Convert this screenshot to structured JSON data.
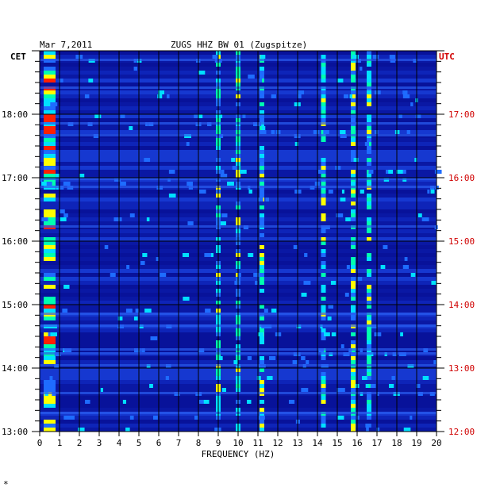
{
  "header": {
    "date": "Mar 7,2011",
    "station": "ZUGS HHZ BW 01 (Zugspitze)"
  },
  "chart_data": {
    "type": "heatmap",
    "xlabel": "FREQUENCY (HZ)",
    "x_ticks": [
      "0",
      "1",
      "2",
      "3",
      "4",
      "5",
      "6",
      "7",
      "8",
      "9",
      "10",
      "11",
      "12",
      "13",
      "14",
      "15",
      "16",
      "17",
      "18",
      "19",
      "20"
    ],
    "xlim": [
      0,
      20
    ],
    "left_axis": {
      "label": "CET",
      "ticks": [
        "18:00",
        "17:00",
        "16:00",
        "15:00",
        "14:00",
        "13:00"
      ],
      "range": [
        "13:00",
        "19:00"
      ]
    },
    "right_axis": {
      "label": "UTC",
      "ticks": [
        "17:00",
        "16:00",
        "15:00",
        "14:00",
        "13:00",
        "12:00"
      ],
      "range": [
        "12:00",
        "18:00"
      ]
    },
    "colors": {
      "background": "#0a14a8",
      "low": "#0a1aa0",
      "mid": "#1e6cff",
      "high": "#00e0ff",
      "peak": "#ffff00",
      "max": "#ff2000",
      "utc_text": "#d00000"
    },
    "features": [
      {
        "name": "low-frequency band",
        "freq_hz": [
          0.2,
          0.8
        ]
      },
      {
        "name": "line",
        "freq_hz": 9.0
      },
      {
        "name": "line",
        "freq_hz": 10.0
      },
      {
        "name": "line",
        "freq_hz": 11.2
      },
      {
        "name": "line",
        "freq_hz": 14.3
      },
      {
        "name": "line",
        "freq_hz": 15.8
      },
      {
        "name": "line",
        "freq_hz": 16.6
      }
    ]
  },
  "footer": {
    "mark": "*"
  }
}
